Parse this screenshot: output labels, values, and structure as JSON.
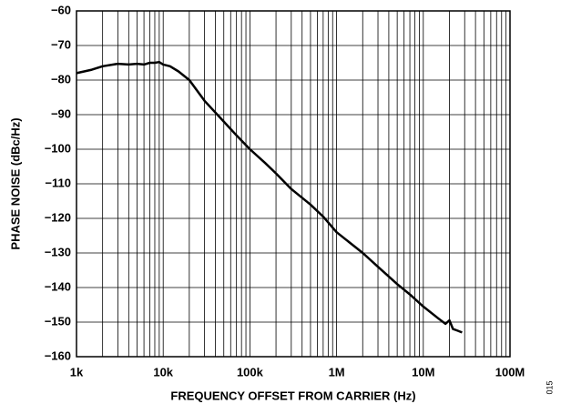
{
  "chart_data": {
    "type": "line",
    "xlabel": "FREQUENCY OFFSET FROM CARRIER (Hz)",
    "ylabel": "PHASE NOISE (dBc/Hz)",
    "annotation": "015",
    "xscale": "log",
    "grid": true,
    "minor_grid": true,
    "color": "#000000",
    "x": [
      1000,
      1500,
      2000,
      3000,
      4000,
      5000,
      6000,
      7000,
      8000,
      9000,
      10000,
      12000,
      15000,
      20000,
      30000,
      50000,
      70000,
      100000,
      150000,
      200000,
      300000,
      500000,
      700000,
      1000000,
      2000000,
      3000000,
      5000000,
      7000000,
      10000000,
      15000000,
      18000000,
      20000000,
      22000000,
      25000000,
      28000000
    ],
    "values": [
      -78,
      -77,
      -76,
      -75.3,
      -75.5,
      -75.3,
      -75.5,
      -75,
      -75,
      -74.8,
      -75.5,
      -76,
      -77.5,
      -80,
      -86,
      -92,
      -96,
      -100,
      -104,
      -107,
      -111.5,
      -116,
      -119.5,
      -124,
      -130,
      -134,
      -139,
      -142,
      -145.5,
      -149,
      -150.5,
      -149.5,
      -152,
      -152.5,
      -153
    ],
    "xlim": [
      1000,
      100000000
    ],
    "xticks": [
      {
        "value": 1000,
        "label": "1k"
      },
      {
        "value": 10000,
        "label": "10k"
      },
      {
        "value": 100000,
        "label": "100k"
      },
      {
        "value": 1000000,
        "label": "1M"
      },
      {
        "value": 10000000,
        "label": "10M"
      },
      {
        "value": 100000000,
        "label": "100M"
      }
    ],
    "ylim": [
      -160,
      -60
    ],
    "yticks": [
      {
        "value": -160,
        "label": "−160"
      },
      {
        "value": -150,
        "label": "−150"
      },
      {
        "value": -140,
        "label": "−140"
      },
      {
        "value": -130,
        "label": "−130"
      },
      {
        "value": -120,
        "label": "−120"
      },
      {
        "value": -110,
        "label": "−110"
      },
      {
        "value": -100,
        "label": "−100"
      },
      {
        "value": -90,
        "label": "−90"
      },
      {
        "value": -80,
        "label": "−80"
      },
      {
        "value": -70,
        "label": "−70"
      },
      {
        "value": -60,
        "label": "−60"
      }
    ]
  }
}
